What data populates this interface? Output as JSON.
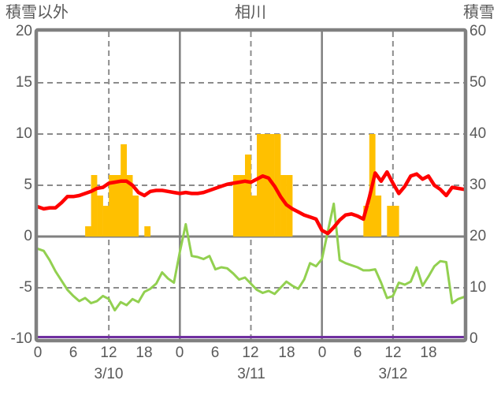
{
  "header": {
    "left_label": "積雪以外",
    "title": "相川",
    "right_label": "積雪"
  },
  "chart_data": {
    "type": "combo_bar_line",
    "title": "相川",
    "x_axis": {
      "hours_total": 72,
      "hour_tick_labels": [
        "0",
        "6",
        "12",
        "18",
        "0",
        "6",
        "12",
        "18",
        "0",
        "6",
        "12",
        "18"
      ],
      "date_labels": [
        "3/10",
        "3/11",
        "3/12"
      ]
    },
    "left_axis": {
      "label": "積雪以外",
      "ticks": [
        "20",
        "15",
        "10",
        "5",
        "0",
        "-5",
        "-10"
      ],
      "range": [
        -10,
        20
      ]
    },
    "right_axis": {
      "label": "積雪",
      "ticks": [
        "60",
        "50",
        "40",
        "30",
        "20",
        "10",
        "0"
      ],
      "range": [
        0,
        60
      ]
    },
    "grid": {
      "h_dashed_values": [
        15,
        10,
        5,
        -5
      ],
      "v_dashed_hours": [
        12,
        36,
        60
      ],
      "v_solid_hours": [
        24,
        48
      ]
    },
    "style": {
      "axis_color": "#808080",
      "grid_color": "#8C8C8C",
      "text_color": "#595959",
      "background": "#FFFFFF",
      "bar_color": "#FFC000",
      "red_line_color": "#FF0000",
      "green_line_color": "#92D050",
      "purple_line_color": "#7030A0"
    },
    "series": {
      "bars": {
        "type": "bar",
        "color": "#FFC000",
        "axis": "left",
        "values_by_day": [
          [
            0,
            0,
            0,
            0,
            0,
            0,
            0,
            0,
            1,
            6,
            4,
            3,
            6,
            6,
            9,
            6,
            4,
            0,
            1,
            0,
            0,
            0,
            0,
            0
          ],
          [
            0,
            0,
            0,
            0,
            0,
            0,
            0,
            0,
            0,
            6,
            6,
            8,
            4,
            10,
            10,
            10,
            10,
            6,
            6,
            0,
            0,
            0,
            0,
            0
          ],
          [
            0,
            0,
            0,
            0,
            0,
            0,
            0,
            3,
            10,
            4,
            0,
            3,
            3,
            0,
            0,
            0,
            0,
            0,
            0,
            0,
            0,
            0,
            0,
            0
          ]
        ]
      },
      "red_line": {
        "type": "line",
        "color": "#FF0000",
        "axis": "left",
        "values_by_day": [
          [
            2.9,
            2.7,
            2.8,
            2.8,
            3.3,
            3.9,
            3.9,
            4.0,
            4.2,
            4.4,
            4.7,
            4.8,
            5.2,
            5.3,
            5.4,
            5.4,
            5.0,
            4.3,
            4.0,
            4.4,
            4.5,
            4.5,
            4.4,
            4.3
          ],
          [
            4.2,
            4.3,
            4.2,
            4.2,
            4.3,
            4.5,
            4.7,
            4.9,
            5.1,
            5.2,
            5.3,
            5.4,
            5.3,
            5.6,
            5.9,
            5.7,
            4.9,
            3.9,
            3.1,
            2.7,
            2.4,
            2.1,
            1.9,
            1.7
          ],
          [
            0.6,
            0.3,
            0.9,
            1.6,
            2.1,
            2.2,
            2.0,
            1.7,
            3.8,
            6.2,
            5.4,
            6.3,
            5.2,
            4.2,
            4.9,
            5.9,
            6.1,
            5.6,
            5.9,
            5.0,
            4.6,
            4.0,
            4.8,
            4.7
          ]
        ],
        "end_value": 4.6
      },
      "green_line": {
        "type": "line",
        "color": "#92D050",
        "axis": "left",
        "values_by_day": [
          [
            -1.2,
            -1.4,
            -2.3,
            -3.4,
            -4.3,
            -5.2,
            -5.8,
            -6.3,
            -6.0,
            -6.5,
            -6.3,
            -5.8,
            -6.1,
            -7.2,
            -6.4,
            -6.7,
            -6.1,
            -6.4,
            -5.4,
            -5.1,
            -4.6,
            -3.5,
            -4.1,
            -4.5
          ],
          [
            -1.5,
            1.2,
            -1.9,
            -2.0,
            -2.2,
            -1.9,
            -3.2,
            -3.0,
            -3.1,
            -3.6,
            -4.2,
            -4.0,
            -4.6,
            -5.2,
            -5.5,
            -5.3,
            -5.6,
            -5.0,
            -4.4,
            -4.8,
            -5.1,
            -4.2,
            -2.6,
            -2.9
          ],
          [
            -2.2,
            0.5,
            3.2,
            -2.3,
            -2.6,
            -2.8,
            -3.0,
            -3.3,
            -3.3,
            -3.2,
            -4.5,
            -6.0,
            -5.8,
            -4.5,
            -4.7,
            -4.4,
            -3.0,
            -4.8,
            -3.9,
            -2.9,
            -2.4,
            -2.5,
            -6.5,
            -6.1
          ]
        ],
        "end_value": -5.9
      },
      "purple_line": {
        "type": "line",
        "color": "#7030A0",
        "axis": "right",
        "constant_value": 0
      }
    }
  }
}
